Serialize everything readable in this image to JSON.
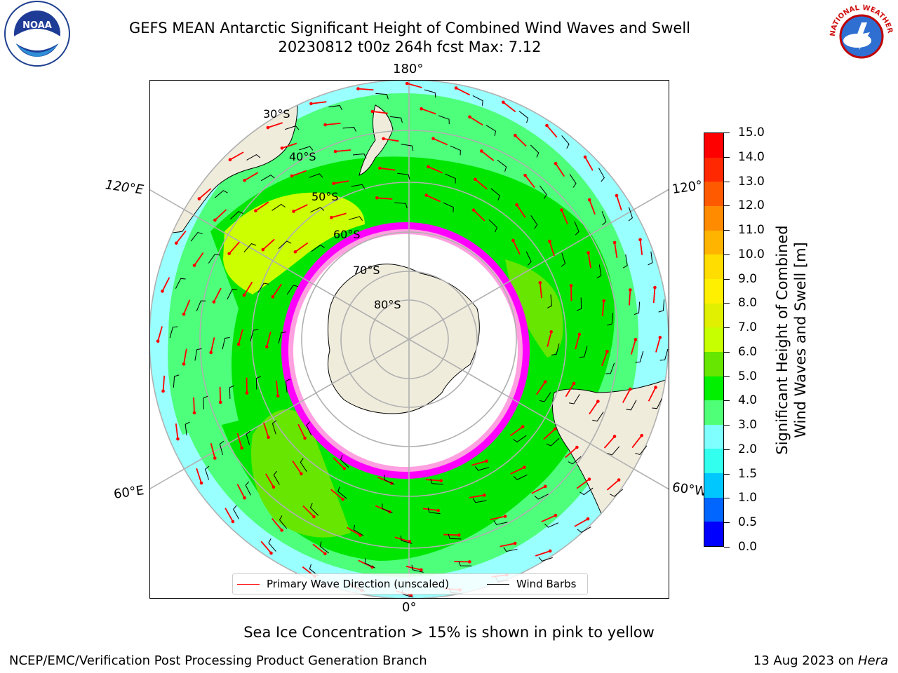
{
  "title_line1": "GEFS MEAN Antarctic Significant Height of Combined Wind Waves and Swell",
  "title_line2": "20230812 t00z 264h fcst   Max: 7.12",
  "edge_labels": {
    "top": "180°",
    "bottom": "0°",
    "upper_left": "120°E",
    "upper_right": "120°",
    "lower_left": "60°E",
    "lower_right": "60°W"
  },
  "lat_labels": [
    "30°S",
    "40°S",
    "50°S",
    "60°S",
    "70°S",
    "80°S"
  ],
  "legend": {
    "wave_direction": "Primary Wave Direction (unscaled)",
    "wind_barbs": "Wind Barbs",
    "wave_color": "#ff0000",
    "barb_color": "#000000"
  },
  "colorbar": {
    "label_line1": "Significant Height of Combined",
    "label_line2": "Wind Waves and Swell [m]",
    "ticks": [
      "0.0",
      "0.5",
      "1.0",
      "1.5",
      "2.0",
      "3.0",
      "4.0",
      "5.0",
      "6.0",
      "7.0",
      "8.0",
      "9.0",
      "10.0",
      "11.0",
      "12.0",
      "13.0",
      "14.0",
      "15.0"
    ],
    "colors": [
      "#0000ff",
      "#0066ff",
      "#00c8ff",
      "#33ffee",
      "#7fffff",
      "#50ff78",
      "#00f000",
      "#66e600",
      "#c8ff00",
      "#e0f000",
      "#fff000",
      "#ffdd00",
      "#ffb400",
      "#ff8c00",
      "#ff5a00",
      "#ff2800",
      "#ff0000"
    ]
  },
  "map_colors": {
    "land": "#efecdc",
    "ocean_low": "#99ffff",
    "ocean_mid": "#4dff7a",
    "ocean_high": "#00e600",
    "ocean_peak": "#ccff00",
    "ice": "#ff00ff",
    "grid": "#b0b0b0"
  },
  "caption": "Sea Ice Concentration > 15% is shown in pink to yellow",
  "footer_left": "NCEP/EMC/Verification Post Processing Product Generation Branch",
  "footer_right_prefix": "13 Aug 2023 on ",
  "footer_right_host": "Hera",
  "logos": {
    "left_text": "NOAA",
    "right_text": "NATIONAL WEATHER SERVICE"
  }
}
